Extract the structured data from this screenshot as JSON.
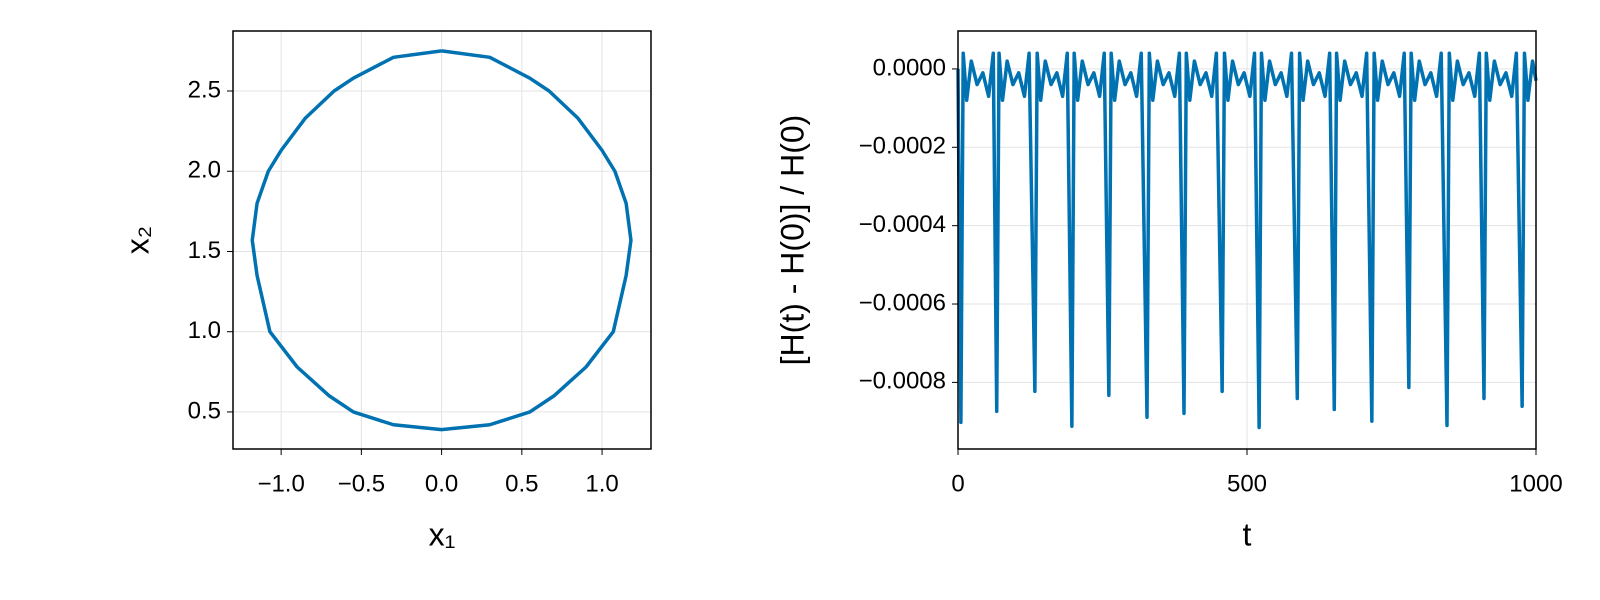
{
  "chart_data": [
    {
      "type": "line",
      "x_label": "x₁",
      "y_label": "x₂",
      "color": "#0072b2",
      "grid": true,
      "xlim": [
        -1.3,
        1.305
      ],
      "ylim": [
        0.269,
        2.874
      ],
      "xticks": [
        {
          "value": -1.0,
          "label": "−1.0"
        },
        {
          "value": -0.5,
          "label": "−0.5"
        },
        {
          "value": 0.0,
          "label": "0.0"
        },
        0.5,
        {
          "value": 1.0,
          "label": "1.0"
        }
      ],
      "yticks": [
        0.5,
        {
          "value": 1.0,
          "label": "1.0"
        },
        1.5,
        {
          "value": 2.0,
          "label": "2.0"
        },
        2.5
      ],
      "x": [
        0,
        0.3,
        0.55,
        0.67,
        0.85,
        1.0,
        1.08,
        1.15,
        1.18,
        1.15,
        1.07,
        0.9,
        0.7,
        0.55,
        0.3,
        0,
        -0.3,
        -0.55,
        -0.7,
        -0.9,
        -1.07,
        -1.15,
        -1.18,
        -1.15,
        -1.08,
        -1.0,
        -0.85,
        -0.67,
        -0.55,
        -0.3,
        0
      ],
      "values": [
        2.75,
        2.71,
        2.58,
        2.5,
        2.33,
        2.13,
        2.0,
        1.8,
        1.57,
        1.35,
        1.0,
        0.78,
        0.6,
        0.5,
        0.42,
        0.39,
        0.42,
        0.5,
        0.6,
        0.78,
        1.0,
        1.35,
        1.57,
        1.8,
        2.0,
        2.13,
        2.33,
        2.5,
        2.58,
        2.71,
        2.75
      ]
    },
    {
      "type": "line",
      "x_label": "t",
      "y_label": "[H(t) - H(0)] / H(0)",
      "color": "#0072b2",
      "grid": true,
      "xlim": [
        0,
        1000
      ],
      "ylim": [
        -0.00097,
        9.68e-05
      ],
      "xticks": [
        0,
        500,
        1000
      ],
      "yticks": [
        {
          "value": 0.0,
          "label": "0.0000"
        },
        {
          "value": -0.0002,
          "label": "−0.0002"
        },
        {
          "value": -0.0004,
          "label": "−0.0004"
        },
        {
          "value": -0.0006,
          "label": "−0.0006"
        },
        {
          "value": -0.0008,
          "label": "−0.0008"
        }
      ],
      "x": [
        0,
        5,
        9,
        15,
        23,
        33,
        43,
        53,
        61,
        67,
        71,
        77,
        85,
        95,
        105,
        115,
        123,
        133,
        137,
        143,
        151,
        161,
        171,
        181,
        189,
        197,
        201,
        207,
        215,
        225,
        235,
        245,
        253,
        261,
        265,
        271,
        279,
        289,
        299,
        309,
        317,
        327,
        331,
        337,
        345,
        355,
        365,
        375,
        383,
        391,
        395,
        401,
        409,
        419,
        429,
        439,
        447,
        457,
        461,
        467,
        475,
        485,
        495,
        505,
        513,
        521,
        525,
        531,
        539,
        549,
        559,
        569,
        577,
        587,
        591,
        597,
        605,
        615,
        625,
        635,
        643,
        651,
        655,
        661,
        669,
        679,
        689,
        699,
        707,
        716,
        720,
        726,
        734,
        744,
        754,
        764,
        772,
        780,
        784,
        790,
        798,
        808,
        818,
        828,
        836,
        846,
        850,
        856,
        864,
        874,
        884,
        894,
        902,
        910,
        914,
        920,
        928,
        938,
        948,
        958,
        966,
        976,
        980,
        986,
        994,
        1000
      ],
      "values": [
        0,
        -0.000902,
        4e-05,
        -8e-05,
        2e-05,
        -4e-05,
        -1e-05,
        -7e-05,
        4e-05,
        -0.000874,
        4e-05,
        -8e-05,
        2e-05,
        -4e-05,
        -1e-05,
        -7e-05,
        4e-05,
        -0.000823,
        4e-05,
        -8e-05,
        2e-05,
        -4e-05,
        -1e-05,
        -7e-05,
        4e-05,
        -0.000912,
        4e-05,
        -8e-05,
        2e-05,
        -4e-05,
        -1e-05,
        -7e-05,
        4e-05,
        -0.000833,
        4e-05,
        -8e-05,
        2e-05,
        -4e-05,
        -1e-05,
        -7e-05,
        4e-05,
        -0.000889,
        4e-05,
        -8e-05,
        2e-05,
        -4e-05,
        -1e-05,
        -7e-05,
        4e-05,
        -0.000879,
        4e-05,
        -8e-05,
        2e-05,
        -4e-05,
        -1e-05,
        -7e-05,
        4e-05,
        -0.000823,
        4e-05,
        -8e-05,
        2e-05,
        -4e-05,
        -1e-05,
        -7e-05,
        4e-05,
        -0.000915,
        4e-05,
        -8e-05,
        2e-05,
        -4e-05,
        -1e-05,
        -7e-05,
        4e-05,
        -0.000841,
        4e-05,
        -8e-05,
        2e-05,
        -4e-05,
        -1e-05,
        -7e-05,
        4e-05,
        -0.000869,
        4e-05,
        -8e-05,
        2e-05,
        -4e-05,
        -1e-05,
        -7e-05,
        4e-05,
        -0.000899,
        4e-05,
        -8e-05,
        2e-05,
        -4e-05,
        -1e-05,
        -7e-05,
        4e-05,
        -0.000813,
        4e-05,
        -8e-05,
        2e-05,
        -4e-05,
        -1e-05,
        -7e-05,
        4e-05,
        -0.00091,
        4e-05,
        -8e-05,
        2e-05,
        -4e-05,
        -1e-05,
        -7e-05,
        4e-05,
        -0.000841,
        4e-05,
        -8e-05,
        2e-05,
        -4e-05,
        -1e-05,
        -7e-05,
        4e-05,
        -0.000861,
        4e-05,
        -8e-05,
        2e-05,
        -3e-05
      ]
    }
  ]
}
